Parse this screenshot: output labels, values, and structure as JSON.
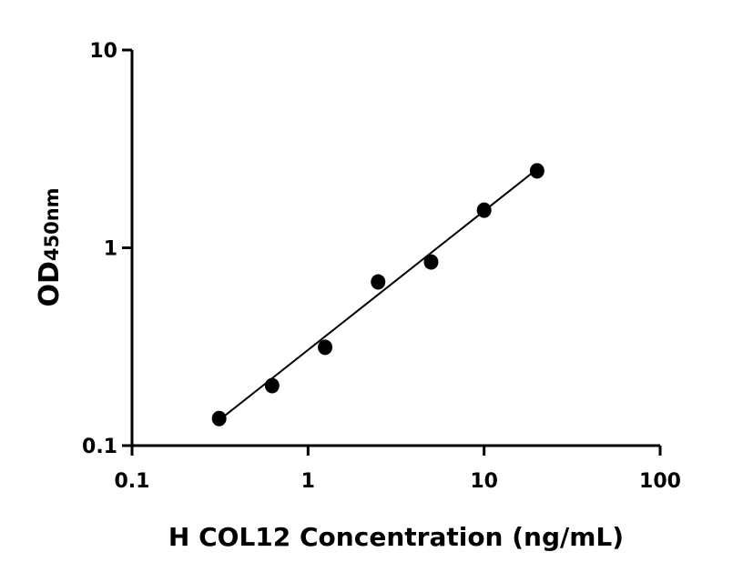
{
  "chart_data": {
    "type": "scatter",
    "xlabel": "H COL12 Concentration (ng/mL)",
    "ylabel": "OD",
    "ylabel_subscript": "450nm",
    "x": [
      0.3125,
      0.625,
      1.25,
      2.5,
      5,
      10,
      20
    ],
    "values": [
      0.137,
      0.201,
      0.314,
      0.672,
      0.848,
      1.55,
      2.45
    ],
    "color": "#000000",
    "fit_line": {
      "x": [
        0.3125,
        20
      ],
      "y": [
        0.1345,
        2.5
      ]
    },
    "xscale": "log",
    "yscale": "log",
    "xlim": [
      0.1,
      100
    ],
    "ylim": [
      0.1,
      10
    ],
    "xticks": [
      0.1,
      1,
      10,
      100
    ],
    "yticks": [
      0.1,
      1,
      10
    ],
    "grid": false
  }
}
